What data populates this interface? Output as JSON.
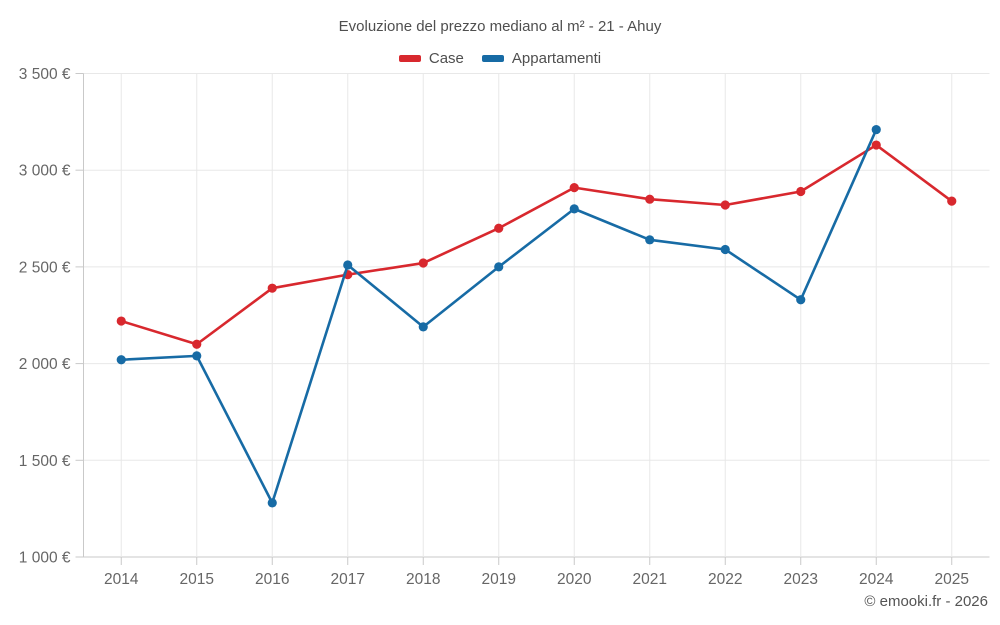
{
  "title": "Evoluzione del prezzo mediano al m² - 21 - Ahuy",
  "legend": {
    "items": [
      {
        "label": "Case",
        "color": "#d8282e"
      },
      {
        "label": "Appartamenti",
        "color": "#176ba5"
      }
    ]
  },
  "copyright": "© emooki.fr - 2026",
  "chart_data": {
    "type": "line",
    "title": "Evoluzione del prezzo mediano al m² - 21 - Ahuy",
    "categories": [
      "2014",
      "2015",
      "2016",
      "2017",
      "2018",
      "2019",
      "2020",
      "2021",
      "2022",
      "2023",
      "2024",
      "2025"
    ],
    "series": [
      {
        "name": "Case",
        "color": "#d8282e",
        "values": [
          2220,
          2100,
          2390,
          2460,
          2520,
          2700,
          2910,
          2850,
          2820,
          2890,
          3130,
          2840
        ]
      },
      {
        "name": "Appartamenti",
        "color": "#176ba5",
        "values": [
          2020,
          2040,
          1280,
          2510,
          2190,
          2500,
          2800,
          2640,
          2590,
          2330,
          3210,
          null
        ]
      }
    ],
    "xlabel": "",
    "ylabel": "",
    "ylim": [
      1000,
      3500
    ],
    "ytick_step": 500,
    "ytick_labels": [
      "1 000 €",
      "1 500 €",
      "2 000 €",
      "2 500 €",
      "3 000 €",
      "3 500 €"
    ],
    "grid": true,
    "legend_position": "top",
    "colors": {
      "grid_line": "#e8e8e8",
      "axis_line": "#c9c9c9",
      "tick_label": "#666666"
    }
  }
}
